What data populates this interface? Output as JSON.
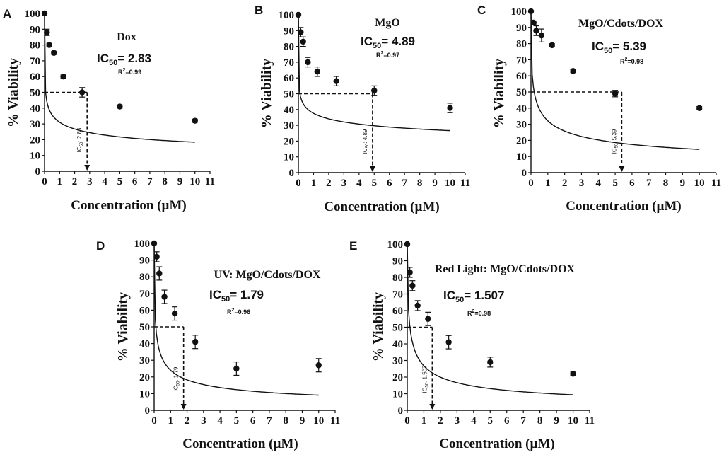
{
  "chart_data": [
    {
      "panel": "A",
      "type": "scatter",
      "title": "Dox",
      "ic50_label": "IC",
      "ic50_sub": "50",
      "ic50_value": "= 2.83",
      "r2_prefix": "R",
      "r2_sup": "2",
      "r2_value": "=0.99",
      "vline_prefix": "IC",
      "vline_sub": "50",
      "vline_value": ": 2.83",
      "xlabel": "Concentration (µM)",
      "ylabel": "% Viability",
      "xlim": [
        0,
        11
      ],
      "ylim": [
        0,
        100
      ],
      "xticks": [
        0,
        1,
        2,
        3,
        4,
        5,
        6,
        7,
        8,
        9,
        10,
        11
      ],
      "yticks": [
        0,
        10,
        20,
        30,
        40,
        50,
        60,
        70,
        80,
        90,
        100
      ],
      "ic50": 2.83,
      "x": [
        0,
        0.156,
        0.3125,
        0.625,
        1.25,
        2.5,
        5,
        10
      ],
      "y": [
        100,
        88,
        80,
        75,
        60,
        50,
        41,
        32
      ],
      "err": [
        0,
        2,
        1,
        1,
        1,
        3,
        1,
        1
      ],
      "fit": {
        "k": 0.07,
        "n": 0.3,
        "ymin": 0
      }
    },
    {
      "panel": "B",
      "type": "scatter",
      "title": "MgO",
      "ic50_label": "IC",
      "ic50_sub": "50",
      "ic50_value": "= 4.89",
      "r2_prefix": "R",
      "r2_sup": "2",
      "r2_value": "=0.97",
      "vline_prefix": "IC",
      "vline_sub": "50",
      "vline_value": ": 4.89",
      "xlabel": "Concentration (µM)",
      "ylabel": "% Viability",
      "xlim": [
        0,
        11
      ],
      "ylim": [
        0,
        100
      ],
      "xticks": [
        0,
        1,
        2,
        3,
        4,
        5,
        6,
        7,
        8,
        9,
        10,
        11
      ],
      "yticks": [
        0,
        10,
        20,
        30,
        40,
        50,
        60,
        70,
        80,
        90,
        100
      ],
      "ic50": 4.89,
      "x": [
        0,
        0.156,
        0.3125,
        0.625,
        1.25,
        2.5,
        5,
        10
      ],
      "y": [
        100,
        89,
        83,
        70,
        64,
        58,
        52,
        41
      ],
      "err": [
        0,
        3,
        3,
        3,
        3,
        3,
        3,
        3
      ],
      "fit": {
        "k": 0.1,
        "n": 0.22,
        "ymin": 0
      }
    },
    {
      "panel": "C",
      "type": "scatter",
      "title": "MgO/Cdots/DOX",
      "ic50_label": "IC",
      "ic50_sub": "50",
      "ic50_value": "= 5.39",
      "r2_prefix": "R",
      "r2_sup": "2",
      "r2_value": "=0.98",
      "vline_prefix": "IC",
      "vline_sub": "50",
      "vline_value": ": 5.39",
      "xlabel": "Concentration (µM)",
      "ylabel": "% Viability",
      "xlim": [
        0,
        11
      ],
      "ylim": [
        0,
        100
      ],
      "xticks": [
        0,
        1,
        2,
        3,
        4,
        5,
        6,
        7,
        8,
        9,
        10,
        11
      ],
      "yticks": [
        0,
        10,
        20,
        30,
        40,
        50,
        60,
        70,
        80,
        90,
        100
      ],
      "ic50": 5.39,
      "x": [
        0,
        0.156,
        0.3125,
        0.625,
        1.25,
        2.5,
        5,
        10
      ],
      "y": [
        100,
        93,
        88,
        85,
        79,
        63,
        49,
        40
      ],
      "err": [
        0,
        1,
        3,
        4,
        1,
        1,
        2,
        1
      ],
      "fit": {
        "k": 0.19,
        "n": 0.45,
        "ymin": 0
      }
    },
    {
      "panel": "D",
      "type": "scatter",
      "title": "UV: MgO/Cdots/DOX",
      "ic50_label": "IC",
      "ic50_sub": "50",
      "ic50_value": "= 1.79",
      "r2_prefix": "R",
      "r2_sup": "2",
      "r2_value": "=0.96",
      "vline_prefix": "IC",
      "vline_sub": "50",
      "vline_value": ": 1.79",
      "xlabel": "Concentration (µM)",
      "ylabel": "% Viability",
      "xlim": [
        0,
        11
      ],
      "ylim": [
        0,
        100
      ],
      "xticks": [
        0,
        1,
        2,
        3,
        4,
        5,
        6,
        7,
        8,
        9,
        10,
        11
      ],
      "yticks": [
        0,
        10,
        20,
        30,
        40,
        50,
        60,
        70,
        80,
        90,
        100
      ],
      "ic50": 1.79,
      "x": [
        0,
        0.156,
        0.3125,
        0.625,
        1.25,
        2.5,
        5,
        10
      ],
      "y": [
        100,
        92,
        82,
        68,
        58,
        41,
        25,
        27
      ],
      "err": [
        0,
        3,
        4,
        4,
        4,
        4,
        4,
        4
      ],
      "fit": {
        "k": 0.1,
        "n": 0.5,
        "ymin": 0
      }
    },
    {
      "panel": "E",
      "type": "scatter",
      "title": "Red Light: MgO/Cdots/DOX",
      "ic50_label": "IC",
      "ic50_sub": "50",
      "ic50_value": "= 1.507",
      "r2_prefix": "R",
      "r2_sup": "2",
      "r2_value": "=0.98",
      "vline_prefix": "IC",
      "vline_sub": "50",
      "vline_value": ": 1.507",
      "xlabel": "Concentration (µM)",
      "ylabel": "% Viability",
      "xlim": [
        0,
        11
      ],
      "ylim": [
        0,
        100
      ],
      "xticks": [
        0,
        1,
        2,
        3,
        4,
        5,
        6,
        7,
        8,
        9,
        10,
        11
      ],
      "yticks": [
        0,
        10,
        20,
        30,
        40,
        50,
        60,
        70,
        80,
        90,
        100
      ],
      "ic50": 1.507,
      "x": [
        0,
        0.156,
        0.3125,
        0.625,
        1.25,
        2.5,
        5,
        10
      ],
      "y": [
        100,
        83,
        75,
        63,
        55,
        41,
        29,
        22
      ],
      "err": [
        0,
        3,
        3,
        3,
        4,
        4,
        3,
        1
      ],
      "fit": {
        "k": 0.16,
        "n": 0.55,
        "ymin": 0
      }
    }
  ]
}
